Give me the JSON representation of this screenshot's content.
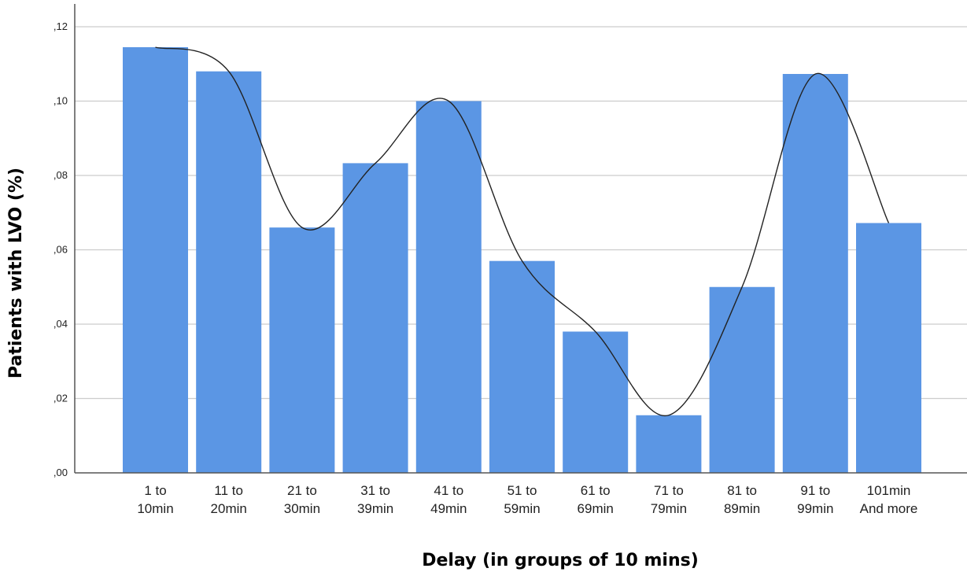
{
  "chart_data": {
    "type": "bar",
    "title": "",
    "xlabel": "Delay (in groups of 10 mins)",
    "ylabel": "Patients with LVO (%)",
    "categories": [
      [
        "1 to",
        "10min"
      ],
      [
        "11 to",
        "20min"
      ],
      [
        "21 to",
        "30min"
      ],
      [
        "31 to",
        "39min"
      ],
      [
        "41 to",
        "49min"
      ],
      [
        "51 to",
        "59min"
      ],
      [
        "61 to",
        "69min"
      ],
      [
        "71 to",
        "79min"
      ],
      [
        "81 to",
        "89min"
      ],
      [
        "91 to",
        "99min"
      ],
      [
        "101min",
        "And more"
      ]
    ],
    "values": [
      0.1145,
      0.108,
      0.066,
      0.0833,
      0.1,
      0.057,
      0.038,
      0.0155,
      0.05,
      0.1073,
      0.0672
    ],
    "ylim": [
      0,
      0.125
    ],
    "yticks": [
      0,
      0.02,
      0.04,
      0.06,
      0.08,
      0.1,
      0.12
    ],
    "ytick_labels": [
      ",00",
      ",02",
      ",04",
      ",06",
      ",08",
      ",10",
      ",12"
    ],
    "grid": true,
    "has_fit_curve": true,
    "colors": {
      "bar": "#5b96e4",
      "grid": "#cccccc",
      "axis": "#555555",
      "curve": "#222222"
    }
  }
}
